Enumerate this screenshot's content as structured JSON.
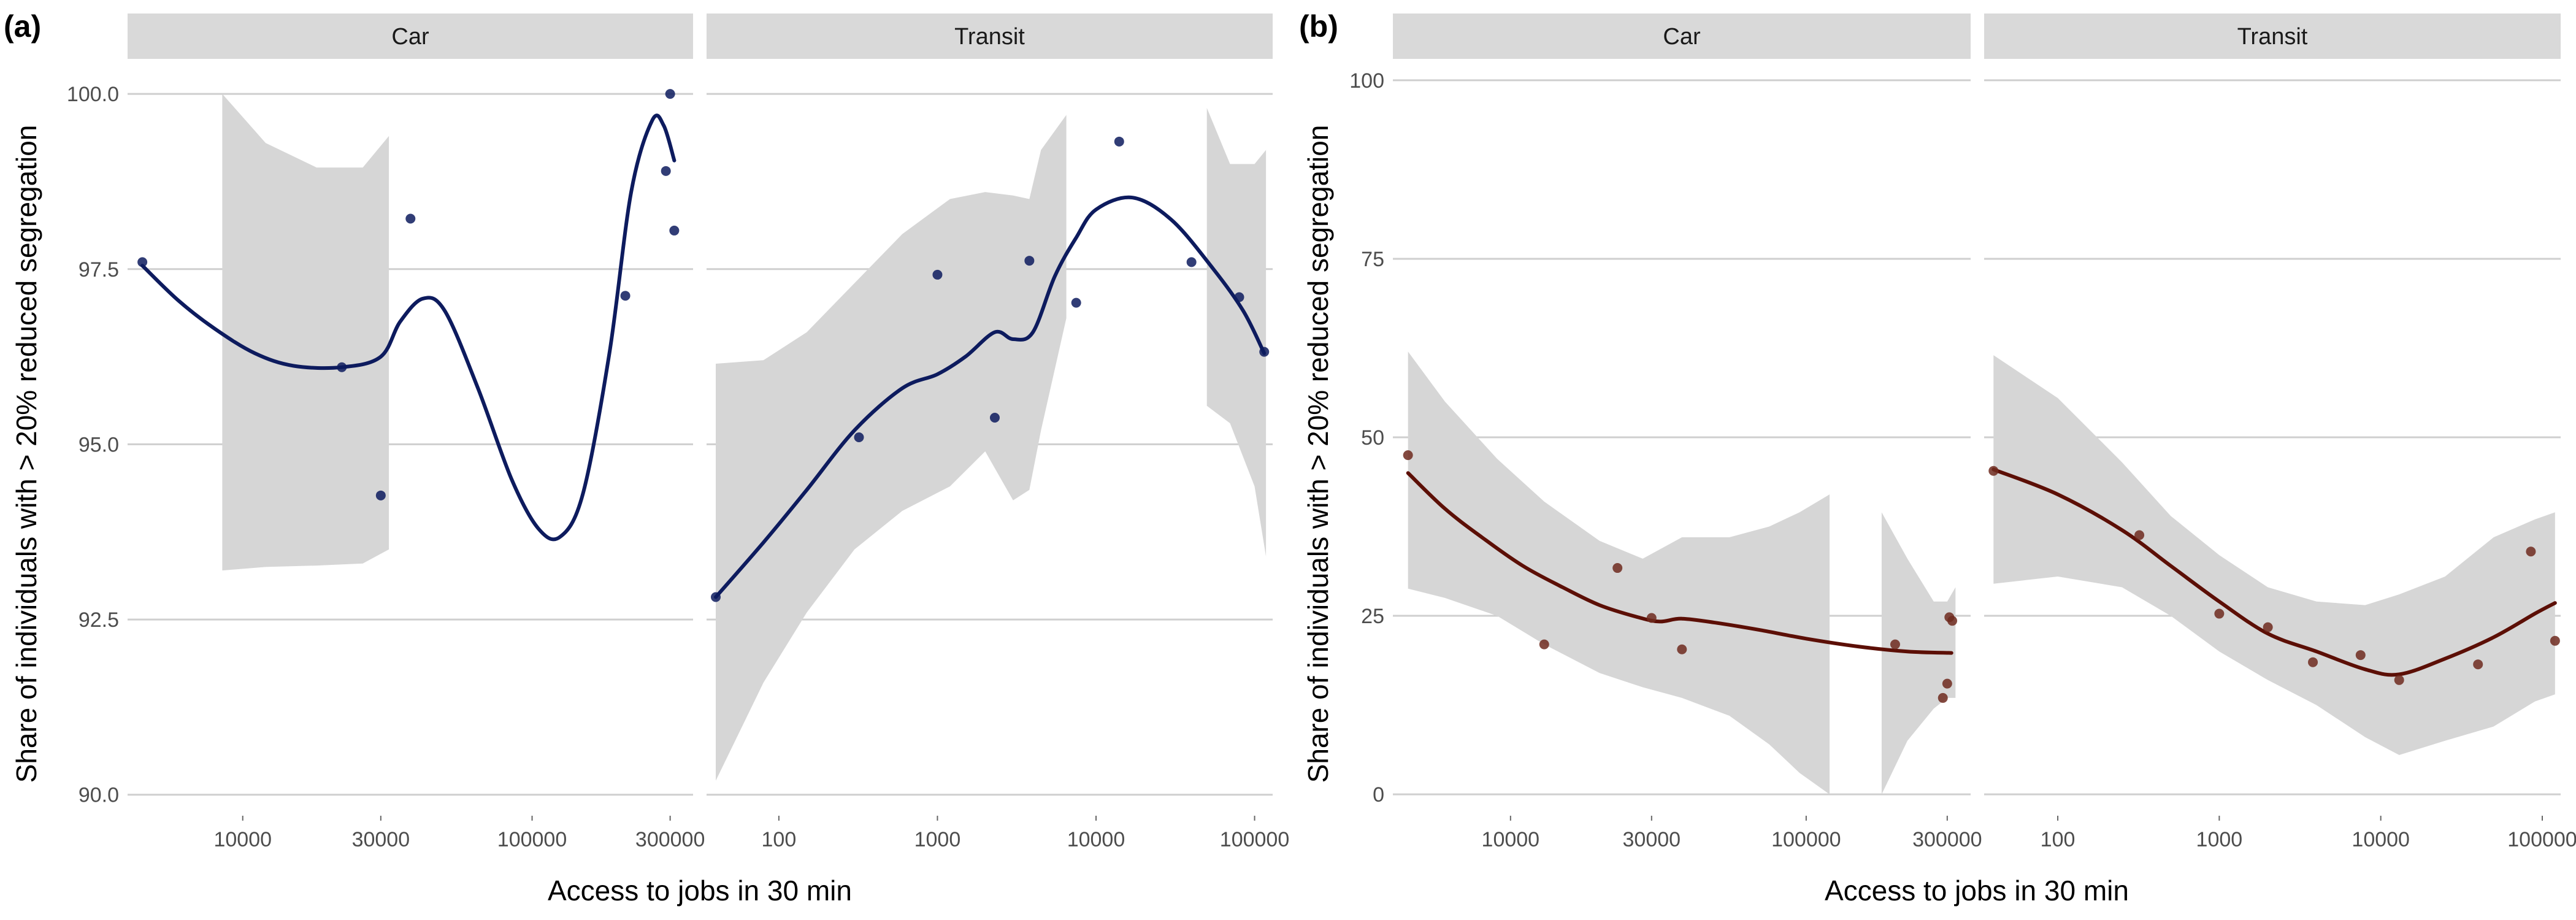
{
  "panels": [
    {
      "label": "(a)",
      "ylabel": "Share of individuals with > 20% reduced segregation",
      "xlabel": "Access to jobs in 30 min",
      "y_ticks": [
        "90.0",
        "92.5",
        "95.0",
        "97.5",
        "100.0"
      ],
      "colors": {
        "line": "#0d1b5e",
        "point": "#0d1b5e",
        "band": "#d6d6d6"
      },
      "facets": [
        {
          "strip": "Car",
          "x_ticks": [
            "10000",
            "30000",
            "100000",
            "300000"
          ]
        },
        {
          "strip": "Transit",
          "x_ticks": [
            "100",
            "1000",
            "10000",
            "100000"
          ]
        }
      ]
    },
    {
      "label": "(b)",
      "ylabel": "Share of individuals with > 20% reduced segregation",
      "xlabel": "Access to jobs in 30 min",
      "y_ticks": [
        "0",
        "25",
        "50",
        "75",
        "100"
      ],
      "colors": {
        "line": "#5c0f06",
        "point": "#6e2a1e",
        "band": "#d6d6d6"
      },
      "facets": [
        {
          "strip": "Car",
          "x_ticks": [
            "10000",
            "30000",
            "100000",
            "300000"
          ]
        },
        {
          "strip": "Transit",
          "x_ticks": [
            "100",
            "1000",
            "10000",
            "100000"
          ]
        }
      ]
    }
  ],
  "chart_data": [
    {
      "type": "scatter",
      "panel": "(a)",
      "facet": "Car",
      "x_scale": "log",
      "xlim": [
        4000,
        360000
      ],
      "ylim": [
        89.7,
        100.5
      ],
      "points": [
        {
          "x": 4500,
          "y": 97.6
        },
        {
          "x": 22000,
          "y": 96.1
        },
        {
          "x": 30000,
          "y": 94.27
        },
        {
          "x": 38000,
          "y": 98.22
        },
        {
          "x": 210000,
          "y": 97.12
        },
        {
          "x": 290000,
          "y": 98.9
        },
        {
          "x": 300000,
          "y": 100.0
        },
        {
          "x": 310000,
          "y": 98.05
        }
      ],
      "smooth": [
        {
          "x": 4500,
          "y": 97.55
        },
        {
          "x": 6000,
          "y": 97.05
        },
        {
          "x": 8000,
          "y": 96.65
        },
        {
          "x": 11000,
          "y": 96.3
        },
        {
          "x": 15000,
          "y": 96.12
        },
        {
          "x": 22000,
          "y": 96.1
        },
        {
          "x": 30000,
          "y": 96.25
        },
        {
          "x": 35000,
          "y": 96.75
        },
        {
          "x": 42000,
          "y": 97.08
        },
        {
          "x": 50000,
          "y": 96.9
        },
        {
          "x": 65000,
          "y": 95.8
        },
        {
          "x": 85000,
          "y": 94.5
        },
        {
          "x": 105000,
          "y": 93.8
        },
        {
          "x": 125000,
          "y": 93.68
        },
        {
          "x": 150000,
          "y": 94.3
        },
        {
          "x": 185000,
          "y": 96.3
        },
        {
          "x": 220000,
          "y": 98.6
        },
        {
          "x": 260000,
          "y": 99.62
        },
        {
          "x": 285000,
          "y": 99.55
        },
        {
          "x": 310000,
          "y": 99.05
        }
      ],
      "band_segments": [
        [
          {
            "x": 8500,
            "lo": 93.2,
            "hi": 100.0
          },
          {
            "x": 12000,
            "lo": 93.25,
            "hi": 99.3
          },
          {
            "x": 18000,
            "lo": 93.27,
            "hi": 98.95
          },
          {
            "x": 26000,
            "lo": 93.3,
            "hi": 98.95
          },
          {
            "x": 32000,
            "lo": 93.5,
            "hi": 99.4
          }
        ]
      ]
    },
    {
      "type": "scatter",
      "panel": "(a)",
      "facet": "Transit",
      "x_scale": "log",
      "xlim": [
        35,
        130000
      ],
      "ylim": [
        89.7,
        100.5
      ],
      "points": [
        {
          "x": 40,
          "y": 92.82
        },
        {
          "x": 320,
          "y": 95.1
        },
        {
          "x": 1000,
          "y": 97.42
        },
        {
          "x": 2300,
          "y": 95.38
        },
        {
          "x": 3800,
          "y": 97.62
        },
        {
          "x": 7500,
          "y": 97.02
        },
        {
          "x": 14000,
          "y": 99.32
        },
        {
          "x": 40000,
          "y": 97.6
        },
        {
          "x": 80000,
          "y": 97.1
        },
        {
          "x": 115000,
          "y": 96.32
        }
      ],
      "smooth": [
        {
          "x": 40,
          "y": 92.82
        },
        {
          "x": 80,
          "y": 93.6
        },
        {
          "x": 150,
          "y": 94.35
        },
        {
          "x": 300,
          "y": 95.2
        },
        {
          "x": 600,
          "y": 95.8
        },
        {
          "x": 1000,
          "y": 96.0
        },
        {
          "x": 1500,
          "y": 96.25
        },
        {
          "x": 2300,
          "y": 96.6
        },
        {
          "x": 3000,
          "y": 96.5
        },
        {
          "x": 4000,
          "y": 96.6
        },
        {
          "x": 5500,
          "y": 97.4
        },
        {
          "x": 7500,
          "y": 97.95
        },
        {
          "x": 10000,
          "y": 98.35
        },
        {
          "x": 17000,
          "y": 98.52
        },
        {
          "x": 30000,
          "y": 98.2
        },
        {
          "x": 55000,
          "y": 97.5
        },
        {
          "x": 85000,
          "y": 96.9
        },
        {
          "x": 115000,
          "y": 96.3
        }
      ],
      "band_segments": [
        [
          {
            "x": 40,
            "lo": 90.2,
            "hi": 96.15
          },
          {
            "x": 80,
            "lo": 91.6,
            "hi": 96.2
          },
          {
            "x": 150,
            "lo": 92.6,
            "hi": 96.6
          },
          {
            "x": 300,
            "lo": 93.5,
            "hi": 97.3
          },
          {
            "x": 600,
            "lo": 94.05,
            "hi": 98.0
          },
          {
            "x": 1200,
            "lo": 94.4,
            "hi": 98.5
          },
          {
            "x": 2000,
            "lo": 94.9,
            "hi": 98.6
          },
          {
            "x": 3000,
            "lo": 94.2,
            "hi": 98.55
          },
          {
            "x": 3800,
            "lo": 94.35,
            "hi": 98.5
          },
          {
            "x": 4500,
            "lo": 95.2,
            "hi": 99.2
          },
          {
            "x": 6500,
            "lo": 96.8,
            "hi": 99.7
          }
        ],
        [
          {
            "x": 50000,
            "lo": 95.55,
            "hi": 99.8
          },
          {
            "x": 70000,
            "lo": 95.3,
            "hi": 99.0
          },
          {
            "x": 100000,
            "lo": 94.4,
            "hi": 99.0
          },
          {
            "x": 118000,
            "lo": 93.4,
            "hi": 99.2
          }
        ]
      ]
    },
    {
      "type": "scatter",
      "panel": "(b)",
      "facet": "Car",
      "x_scale": "log",
      "xlim": [
        4000,
        360000
      ],
      "ylim": [
        -3,
        103
      ],
      "points": [
        {
          "x": 4500,
          "y": 47.5
        },
        {
          "x": 13000,
          "y": 21.0
        },
        {
          "x": 23000,
          "y": 31.7
        },
        {
          "x": 30000,
          "y": 24.7
        },
        {
          "x": 38000,
          "y": 20.3
        },
        {
          "x": 200000,
          "y": 21.0
        },
        {
          "x": 290000,
          "y": 13.5
        },
        {
          "x": 300000,
          "y": 15.5
        },
        {
          "x": 305000,
          "y": 24.8
        },
        {
          "x": 312000,
          "y": 24.3
        }
      ],
      "smooth": [
        {
          "x": 4500,
          "y": 45.0
        },
        {
          "x": 6000,
          "y": 40.0
        },
        {
          "x": 8000,
          "y": 36.0
        },
        {
          "x": 11000,
          "y": 32.0
        },
        {
          "x": 15000,
          "y": 29.0
        },
        {
          "x": 20000,
          "y": 26.5
        },
        {
          "x": 27000,
          "y": 24.8
        },
        {
          "x": 32000,
          "y": 24.2
        },
        {
          "x": 38000,
          "y": 24.6
        },
        {
          "x": 50000,
          "y": 24.0
        },
        {
          "x": 70000,
          "y": 23.0
        },
        {
          "x": 100000,
          "y": 21.8
        },
        {
          "x": 150000,
          "y": 20.7
        },
        {
          "x": 220000,
          "y": 20.0
        },
        {
          "x": 310000,
          "y": 19.8
        }
      ],
      "band_segments": [
        [
          {
            "x": 4500,
            "lo": 28.8,
            "hi": 62.0
          },
          {
            "x": 6000,
            "lo": 27.5,
            "hi": 55.0
          },
          {
            "x": 9000,
            "lo": 25.0,
            "hi": 47.0
          },
          {
            "x": 13000,
            "lo": 21.0,
            "hi": 41.0
          },
          {
            "x": 20000,
            "lo": 17.0,
            "hi": 35.5
          },
          {
            "x": 28000,
            "lo": 15.0,
            "hi": 33.0
          },
          {
            "x": 38000,
            "lo": 13.5,
            "hi": 36.0
          },
          {
            "x": 55000,
            "lo": 11.0,
            "hi": 36.0
          },
          {
            "x": 75000,
            "lo": 7.0,
            "hi": 37.5
          },
          {
            "x": 95000,
            "lo": 3.0,
            "hi": 39.5
          },
          {
            "x": 120000,
            "lo": 0.0,
            "hi": 42.0
          }
        ],
        [
          {
            "x": 180000,
            "lo": 0.0,
            "hi": 39.5
          },
          {
            "x": 220000,
            "lo": 7.5,
            "hi": 33.0
          },
          {
            "x": 270000,
            "lo": 12.0,
            "hi": 27.0
          },
          {
            "x": 300000,
            "lo": 13.5,
            "hi": 27.0
          },
          {
            "x": 320000,
            "lo": 13.5,
            "hi": 29.0
          }
        ]
      ]
    },
    {
      "type": "scatter",
      "panel": "(b)",
      "facet": "Transit",
      "x_scale": "log",
      "xlim": [
        35,
        130000
      ],
      "ylim": [
        -3,
        103
      ],
      "points": [
        {
          "x": 40,
          "y": 45.3
        },
        {
          "x": 320,
          "y": 36.3
        },
        {
          "x": 1000,
          "y": 25.3
        },
        {
          "x": 2000,
          "y": 23.4
        },
        {
          "x": 3800,
          "y": 18.5
        },
        {
          "x": 7500,
          "y": 19.5
        },
        {
          "x": 13000,
          "y": 16.0
        },
        {
          "x": 40000,
          "y": 18.2
        },
        {
          "x": 85000,
          "y": 34.0
        },
        {
          "x": 120000,
          "y": 21.5
        }
      ],
      "smooth": [
        {
          "x": 40,
          "y": 45.5
        },
        {
          "x": 100,
          "y": 42.0
        },
        {
          "x": 250,
          "y": 37.0
        },
        {
          "x": 500,
          "y": 32.0
        },
        {
          "x": 1000,
          "y": 27.0
        },
        {
          "x": 2000,
          "y": 22.5
        },
        {
          "x": 4000,
          "y": 20.0
        },
        {
          "x": 8000,
          "y": 17.5
        },
        {
          "x": 13000,
          "y": 16.8
        },
        {
          "x": 25000,
          "y": 19.0
        },
        {
          "x": 50000,
          "y": 22.0
        },
        {
          "x": 90000,
          "y": 25.3
        },
        {
          "x": 120000,
          "y": 26.8
        }
      ],
      "band_segments": [
        [
          {
            "x": 40,
            "lo": 29.5,
            "hi": 61.5
          },
          {
            "x": 100,
            "lo": 30.5,
            "hi": 55.5
          },
          {
            "x": 250,
            "lo": 29.0,
            "hi": 46.5
          },
          {
            "x": 500,
            "lo": 25.0,
            "hi": 39.0
          },
          {
            "x": 1000,
            "lo": 20.0,
            "hi": 33.5
          },
          {
            "x": 2000,
            "lo": 16.0,
            "hi": 29.0
          },
          {
            "x": 4000,
            "lo": 12.5,
            "hi": 27.0
          },
          {
            "x": 8000,
            "lo": 8.0,
            "hi": 26.5
          },
          {
            "x": 13000,
            "lo": 5.5,
            "hi": 28.0
          },
          {
            "x": 25000,
            "lo": 7.5,
            "hi": 30.5
          },
          {
            "x": 50000,
            "lo": 9.5,
            "hi": 36.0
          },
          {
            "x": 90000,
            "lo": 13.0,
            "hi": 38.5
          },
          {
            "x": 120000,
            "lo": 14.0,
            "hi": 39.5
          }
        ]
      ]
    }
  ]
}
